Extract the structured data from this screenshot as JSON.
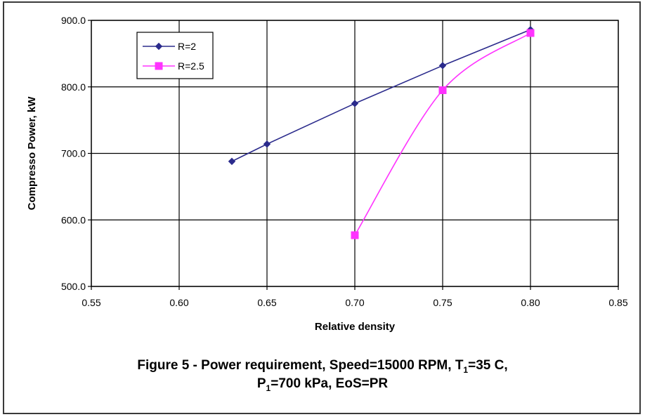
{
  "chart_data": {
    "type": "line",
    "title": "",
    "xlabel": "Relative density",
    "ylabel": "Compresso Power, kW",
    "xlim": [
      0.55,
      0.85
    ],
    "ylim": [
      500,
      900
    ],
    "x_ticks": [
      "0.55",
      "0.60",
      "0.65",
      "0.70",
      "0.75",
      "0.80",
      "0.85"
    ],
    "y_ticks": [
      "500.0",
      "600.0",
      "700.0",
      "800.0",
      "900.0"
    ],
    "grid": true,
    "legend_position": "top-left",
    "series": [
      {
        "name": "R=2",
        "color": "#2b2b8c",
        "marker": "diamond",
        "smooth": false,
        "points": [
          [
            0.63,
            688
          ],
          [
            0.65,
            714
          ],
          [
            0.7,
            775
          ],
          [
            0.75,
            832
          ],
          [
            0.8,
            886
          ]
        ]
      },
      {
        "name": "R=2.5",
        "color": "#ff33ff",
        "marker": "square",
        "smooth": true,
        "points": [
          [
            0.7,
            577
          ],
          [
            0.75,
            795
          ],
          [
            0.8,
            881
          ]
        ]
      }
    ]
  },
  "caption": {
    "line1_a": "Figure 5 - Power requirement,  Speed=15000 RPM, T",
    "line1_sub": "1",
    "line1_b": "=35 C,",
    "line2_a": "P",
    "line2_sub": "1",
    "line2_b": "=700 kPa, EoS=PR"
  }
}
